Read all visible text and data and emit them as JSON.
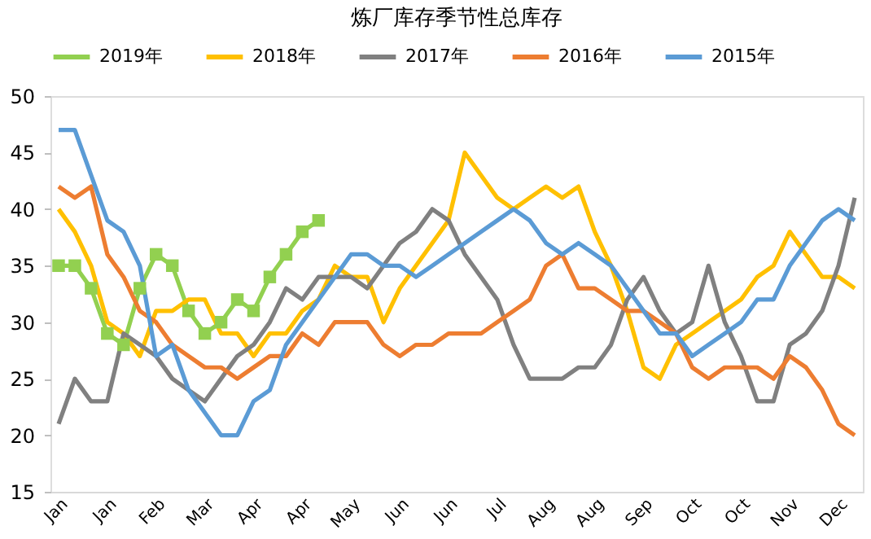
{
  "chart_data": {
    "type": "line",
    "title": "炼厂库存季节性总库存",
    "categories": [
      "Jan",
      null,
      null,
      "Jan",
      null,
      null,
      "Feb",
      null,
      null,
      "Mar",
      null,
      null,
      "Apr",
      null,
      null,
      "Apr",
      null,
      null,
      "May",
      null,
      null,
      "Jun",
      null,
      null,
      "Jun",
      null,
      null,
      "Jul",
      null,
      null,
      "Aug",
      null,
      null,
      "Aug",
      null,
      null,
      "Sep",
      null,
      null,
      "Oct",
      null,
      null,
      "Oct",
      null,
      null,
      "Nov",
      null,
      null,
      "Dec",
      null
    ],
    "series": [
      {
        "name": "2019年",
        "color": "#92d050",
        "marker": "square",
        "values": [
          35,
          35,
          33,
          29,
          28,
          33,
          36,
          35,
          31,
          29,
          30,
          32,
          31,
          34,
          36,
          38,
          39,
          null,
          null,
          null,
          null,
          null,
          null,
          null,
          null,
          null,
          null,
          null,
          null,
          null,
          null,
          null,
          null,
          null,
          null,
          null,
          null,
          null,
          null,
          null,
          null,
          null,
          null,
          null,
          null,
          null,
          null,
          null,
          null,
          null
        ]
      },
      {
        "name": "2018年",
        "color": "#ffc000",
        "values": [
          40,
          38,
          35,
          30,
          29,
          27,
          31,
          31,
          32,
          32,
          29,
          29,
          27,
          29,
          29,
          31,
          32,
          35,
          34,
          34,
          30,
          33,
          35,
          37,
          39,
          45,
          43,
          41,
          40,
          41,
          42,
          41,
          42,
          38,
          35,
          31,
          26,
          25,
          28,
          29,
          30,
          31,
          32,
          34,
          35,
          38,
          36,
          34,
          34,
          33
        ]
      },
      {
        "name": "2017年",
        "color": "#808080",
        "values": [
          21,
          25,
          23,
          23,
          29,
          28,
          27,
          25,
          24,
          23,
          25,
          27,
          28,
          30,
          33,
          32,
          34,
          34,
          34,
          33,
          35,
          37,
          38,
          40,
          39,
          36,
          34,
          32,
          28,
          25,
          25,
          25,
          26,
          26,
          28,
          32,
          34,
          31,
          29,
          30,
          35,
          30,
          27,
          23,
          23,
          28,
          29,
          31,
          35,
          41
        ]
      },
      {
        "name": "2016年",
        "color": "#ed7d31",
        "values": [
          42,
          41,
          42,
          36,
          34,
          31,
          30,
          28,
          27,
          26,
          26,
          25,
          26,
          27,
          27,
          29,
          28,
          30,
          30,
          30,
          28,
          27,
          28,
          28,
          29,
          29,
          29,
          30,
          31,
          32,
          35,
          36,
          33,
          33,
          32,
          31,
          31,
          30,
          29,
          26,
          25,
          26,
          26,
          26,
          25,
          27,
          26,
          24,
          21,
          20
        ]
      },
      {
        "name": "2015年",
        "color": "#5b9bd5",
        "values": [
          47,
          47,
          43,
          39,
          38,
          35,
          27,
          28,
          24,
          22,
          20,
          20,
          23,
          24,
          28,
          30,
          32,
          34,
          36,
          36,
          35,
          35,
          34,
          35,
          36,
          37,
          38,
          39,
          40,
          39,
          37,
          36,
          37,
          36,
          35,
          33,
          31,
          29,
          29,
          27,
          28,
          29,
          30,
          32,
          32,
          35,
          37,
          39,
          40,
          39
        ]
      }
    ],
    "ylim": [
      15,
      50
    ],
    "yticks": [
      15,
      20,
      25,
      30,
      35,
      40,
      45,
      50
    ],
    "legend": "top",
    "grid": false,
    "marker": "none"
  }
}
